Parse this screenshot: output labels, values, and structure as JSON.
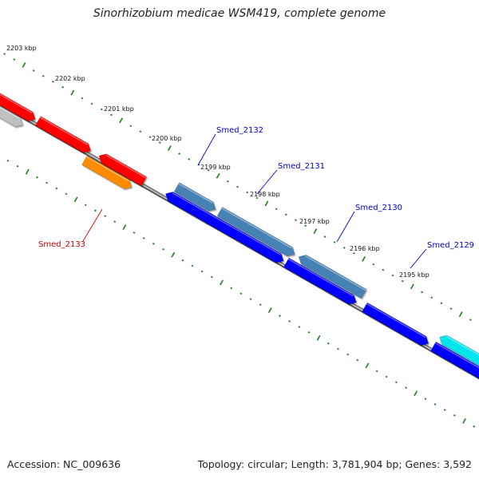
{
  "title": "Sinorhizobium medicae WSM419, complete genome",
  "accession_text": "Accession: NC_009636",
  "topology_text": "Topology: circular; Length: 3,781,904 bp; Genes: 3,592",
  "colors": {
    "backbone": "#808080",
    "tick": "#1a7f1a",
    "label_forward": "#0000cc",
    "label_reverse": "#cc0000",
    "gene_red": "#ff0000",
    "gene_orange": "#ff8c00",
    "gene_grey": "#c0c0c0",
    "gene_blue": "#0000ff",
    "gene_steelblue": "#4682b4",
    "gene_cyan": "#00e5ee"
  },
  "kbp_labels": [
    "2203 kbp",
    "2202 kbp",
    "2201 kbp",
    "2200 kbp",
    "2199 kbp",
    "2198 kbp",
    "2197 kbp",
    "2196 kbp",
    "2195 kbp"
  ],
  "gene_labels": [
    {
      "text": "Smed_2132",
      "strand": "forward"
    },
    {
      "text": "Smed_2131",
      "strand": "forward"
    },
    {
      "text": "Smed_2130",
      "strand": "forward"
    },
    {
      "text": "Smed_2129",
      "strand": "forward"
    },
    {
      "text": "Smed_2133",
      "strand": "reverse"
    }
  ]
}
